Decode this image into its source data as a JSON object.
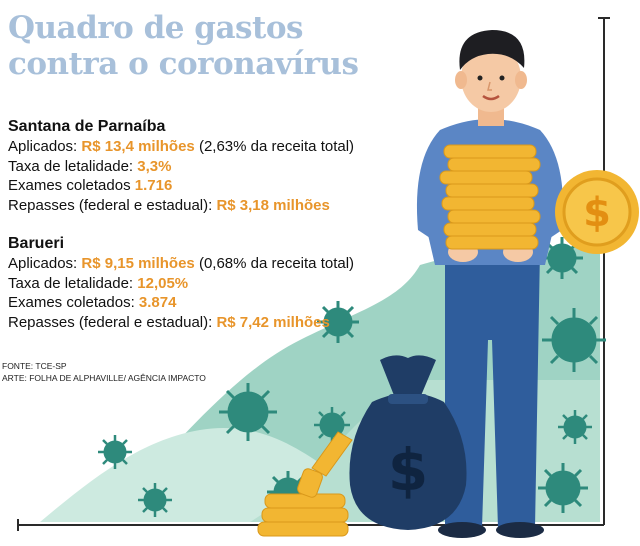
{
  "title": {
    "line1": "Quadro de gastos",
    "line2": "contra o coronavírus"
  },
  "cities": [
    {
      "name": "Santana de Parnaíba",
      "applied_label": "Aplicados:",
      "applied_value": "R$ 13,4 milhões",
      "applied_note": "(2,63% da receita total)",
      "lethality_label": "Taxa de letalidade:",
      "lethality_value": "3,3%",
      "exams_label": "Exames coletados",
      "exams_value": "1.716",
      "transfers_label": "Repasses (federal e estadual):",
      "transfers_value": "R$ 3,18 milhões"
    },
    {
      "name": "Barueri",
      "applied_label": "Aplicados:",
      "applied_value": "R$ 9,15 milhões",
      "applied_note": "(0,68% da receita total)",
      "lethality_label": "Taxa de letalidade:",
      "lethality_value": "12,05%",
      "exams_label": "Exames coletados:",
      "exams_value": "3.874",
      "transfers_label": "Repasses (federal e estadual):",
      "transfers_value": "R$ 7,42 milhões"
    }
  ],
  "credits": {
    "source": "FONTE: TCE-SP",
    "art": "ARTE: FOLHA DE ALPHAVILLE/ AGÊNCIA IMPACTO"
  },
  "colors": {
    "title": "#a8c0da",
    "highlight": "#e8952b",
    "virus": "#2e8a7c",
    "hill_dark": "#9fd3c4",
    "hill_light": "#cdeae0",
    "shirt": "#5b86c5",
    "pants": "#2f5d9c",
    "bag": "#1f3d66",
    "coin": "#f2b632"
  },
  "icons": [
    "man-holding-coins",
    "money-bag-icon",
    "dollar-coin-icon",
    "virus-icon"
  ]
}
